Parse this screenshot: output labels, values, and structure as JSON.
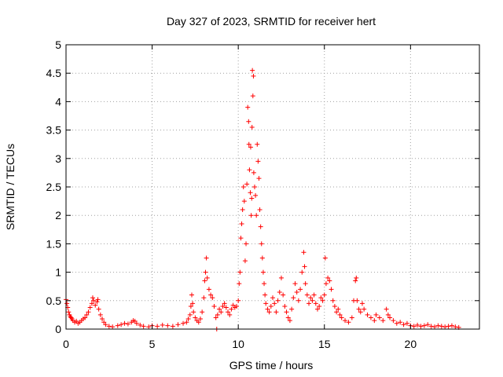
{
  "chart_data": {
    "type": "scatter",
    "title": "Day 327 of 2023, SRMTID for receiver hert",
    "xlabel": "GPS time / hours",
    "ylabel": "SRMTID / TECUs",
    "xlim": [
      0,
      24
    ],
    "ylim": [
      0,
      5
    ],
    "xticks": [
      0,
      5,
      10,
      15,
      20
    ],
    "xtick_labels": [
      "0",
      "5",
      "10",
      "15",
      "20"
    ],
    "yticks": [
      0,
      0.5,
      1,
      1.5,
      2,
      2.5,
      3,
      3.5,
      4,
      4.5,
      5
    ],
    "ytick_labels": [
      "0",
      "0.5",
      "1",
      "1.5",
      "2",
      "2.5",
      "3",
      "3.5",
      "4",
      "4.5",
      "5"
    ],
    "grid": true,
    "marker": "plus",
    "series_color": "#ff0000",
    "series": [
      {
        "name": "SRMTID",
        "points": [
          [
            0.0,
            0.52
          ],
          [
            0.05,
            0.45
          ],
          [
            0.1,
            0.38
          ],
          [
            0.15,
            0.3
          ],
          [
            0.2,
            0.25
          ],
          [
            0.25,
            0.22
          ],
          [
            0.3,
            0.2
          ],
          [
            0.35,
            0.18
          ],
          [
            0.4,
            0.15
          ],
          [
            0.5,
            0.12
          ],
          [
            0.6,
            0.14
          ],
          [
            0.7,
            0.1
          ],
          [
            0.8,
            0.12
          ],
          [
            0.9,
            0.15
          ],
          [
            1.0,
            0.18
          ],
          [
            1.1,
            0.2
          ],
          [
            1.2,
            0.25
          ],
          [
            1.3,
            0.3
          ],
          [
            1.4,
            0.38
          ],
          [
            1.5,
            0.45
          ],
          [
            1.55,
            0.55
          ],
          [
            1.6,
            0.5
          ],
          [
            1.7,
            0.42
          ],
          [
            1.8,
            0.48
          ],
          [
            1.85,
            0.52
          ],
          [
            1.9,
            0.35
          ],
          [
            2.0,
            0.25
          ],
          [
            2.1,
            0.18
          ],
          [
            2.2,
            0.12
          ],
          [
            2.3,
            0.08
          ],
          [
            2.5,
            0.05
          ],
          [
            2.7,
            0.04
          ],
          [
            3.0,
            0.06
          ],
          [
            3.2,
            0.08
          ],
          [
            3.4,
            0.1
          ],
          [
            3.6,
            0.09
          ],
          [
            3.8,
            0.12
          ],
          [
            3.9,
            0.15
          ],
          [
            4.0,
            0.14
          ],
          [
            4.1,
            0.1
          ],
          [
            4.3,
            0.07
          ],
          [
            4.5,
            0.05
          ],
          [
            4.8,
            0.04
          ],
          [
            5.0,
            0.06
          ],
          [
            5.3,
            0.05
          ],
          [
            5.6,
            0.07
          ],
          [
            5.9,
            0.06
          ],
          [
            6.2,
            0.05
          ],
          [
            6.5,
            0.08
          ],
          [
            6.8,
            0.1
          ],
          [
            7.0,
            0.12
          ],
          [
            7.1,
            0.18
          ],
          [
            7.2,
            0.25
          ],
          [
            7.25,
            0.4
          ],
          [
            7.3,
            0.6
          ],
          [
            7.35,
            0.45
          ],
          [
            7.4,
            0.3
          ],
          [
            7.5,
            0.2
          ],
          [
            7.6,
            0.15
          ],
          [
            7.7,
            0.12
          ],
          [
            7.8,
            0.18
          ],
          [
            7.9,
            0.3
          ],
          [
            8.0,
            0.55
          ],
          [
            8.05,
            0.85
          ],
          [
            8.1,
            1.0
          ],
          [
            8.15,
            1.25
          ],
          [
            8.2,
            0.9
          ],
          [
            8.3,
            0.7
          ],
          [
            8.4,
            0.6
          ],
          [
            8.5,
            0.55
          ],
          [
            8.6,
            0.4
          ],
          [
            8.7,
            0.2
          ],
          [
            8.75,
            0.0
          ],
          [
            8.8,
            0.25
          ],
          [
            8.9,
            0.35
          ],
          [
            9.0,
            0.3
          ],
          [
            9.1,
            0.4
          ],
          [
            9.2,
            0.45
          ],
          [
            9.3,
            0.38
          ],
          [
            9.4,
            0.3
          ],
          [
            9.5,
            0.25
          ],
          [
            9.6,
            0.35
          ],
          [
            9.7,
            0.42
          ],
          [
            9.8,
            0.38
          ],
          [
            9.9,
            0.4
          ],
          [
            10.0,
            0.5
          ],
          [
            10.05,
            0.8
          ],
          [
            10.1,
            1.0
          ],
          [
            10.15,
            1.6
          ],
          [
            10.2,
            1.85
          ],
          [
            10.25,
            2.1
          ],
          [
            10.3,
            2.5
          ],
          [
            10.35,
            2.25
          ],
          [
            10.4,
            1.2
          ],
          [
            10.45,
            1.5
          ],
          [
            10.5,
            2.55
          ],
          [
            10.55,
            3.9
          ],
          [
            10.6,
            3.65
          ],
          [
            10.62,
            3.25
          ],
          [
            10.65,
            2.8
          ],
          [
            10.7,
            2.4
          ],
          [
            10.72,
            3.2
          ],
          [
            10.75,
            2.0
          ],
          [
            10.78,
            2.3
          ],
          [
            10.8,
            3.55
          ],
          [
            10.82,
            4.55
          ],
          [
            10.85,
            4.1
          ],
          [
            10.88,
            4.45
          ],
          [
            10.9,
            2.75
          ],
          [
            10.95,
            2.5
          ],
          [
            11.0,
            2.35
          ],
          [
            11.05,
            2.0
          ],
          [
            11.1,
            3.25
          ],
          [
            11.15,
            2.95
          ],
          [
            11.2,
            2.65
          ],
          [
            11.25,
            2.1
          ],
          [
            11.3,
            1.8
          ],
          [
            11.35,
            1.5
          ],
          [
            11.4,
            1.25
          ],
          [
            11.45,
            1.0
          ],
          [
            11.5,
            0.8
          ],
          [
            11.55,
            0.6
          ],
          [
            11.6,
            0.45
          ],
          [
            11.7,
            0.35
          ],
          [
            11.8,
            0.3
          ],
          [
            11.9,
            0.4
          ],
          [
            12.0,
            0.55
          ],
          [
            12.1,
            0.45
          ],
          [
            12.2,
            0.3
          ],
          [
            12.3,
            0.5
          ],
          [
            12.4,
            0.65
          ],
          [
            12.5,
            0.9
          ],
          [
            12.6,
            0.6
          ],
          [
            12.7,
            0.4
          ],
          [
            12.8,
            0.3
          ],
          [
            12.9,
            0.2
          ],
          [
            13.0,
            0.15
          ],
          [
            13.1,
            0.35
          ],
          [
            13.2,
            0.55
          ],
          [
            13.3,
            0.8
          ],
          [
            13.4,
            0.65
          ],
          [
            13.5,
            0.5
          ],
          [
            13.6,
            0.7
          ],
          [
            13.7,
            1.0
          ],
          [
            13.8,
            1.35
          ],
          [
            13.85,
            1.1
          ],
          [
            13.9,
            0.8
          ],
          [
            14.0,
            0.6
          ],
          [
            14.1,
            0.45
          ],
          [
            14.2,
            0.55
          ],
          [
            14.3,
            0.5
          ],
          [
            14.4,
            0.6
          ],
          [
            14.5,
            0.45
          ],
          [
            14.6,
            0.35
          ],
          [
            14.7,
            0.4
          ],
          [
            14.8,
            0.55
          ],
          [
            14.9,
            0.5
          ],
          [
            15.0,
            0.6
          ],
          [
            15.05,
            1.25
          ],
          [
            15.1,
            0.8
          ],
          [
            15.2,
            0.9
          ],
          [
            15.3,
            0.85
          ],
          [
            15.4,
            0.7
          ],
          [
            15.5,
            0.5
          ],
          [
            15.6,
            0.4
          ],
          [
            15.7,
            0.3
          ],
          [
            15.8,
            0.35
          ],
          [
            15.9,
            0.25
          ],
          [
            16.0,
            0.2
          ],
          [
            16.2,
            0.15
          ],
          [
            16.4,
            0.12
          ],
          [
            16.6,
            0.2
          ],
          [
            16.7,
            0.5
          ],
          [
            16.8,
            0.85
          ],
          [
            16.85,
            0.9
          ],
          [
            16.9,
            0.5
          ],
          [
            17.0,
            0.35
          ],
          [
            17.1,
            0.3
          ],
          [
            17.2,
            0.45
          ],
          [
            17.3,
            0.35
          ],
          [
            17.5,
            0.25
          ],
          [
            17.7,
            0.2
          ],
          [
            17.9,
            0.15
          ],
          [
            18.0,
            0.25
          ],
          [
            18.2,
            0.2
          ],
          [
            18.4,
            0.15
          ],
          [
            18.6,
            0.35
          ],
          [
            18.7,
            0.25
          ],
          [
            18.8,
            0.2
          ],
          [
            19.0,
            0.15
          ],
          [
            19.2,
            0.1
          ],
          [
            19.4,
            0.12
          ],
          [
            19.6,
            0.08
          ],
          [
            19.8,
            0.1
          ],
          [
            20.0,
            0.06
          ],
          [
            20.2,
            0.05
          ],
          [
            20.4,
            0.07
          ],
          [
            20.6,
            0.05
          ],
          [
            20.8,
            0.06
          ],
          [
            21.0,
            0.08
          ],
          [
            21.2,
            0.05
          ],
          [
            21.4,
            0.04
          ],
          [
            21.6,
            0.06
          ],
          [
            21.8,
            0.05
          ],
          [
            22.0,
            0.04
          ],
          [
            22.2,
            0.05
          ],
          [
            22.4,
            0.06
          ],
          [
            22.6,
            0.04
          ],
          [
            22.8,
            0.03
          ]
        ]
      }
    ]
  }
}
